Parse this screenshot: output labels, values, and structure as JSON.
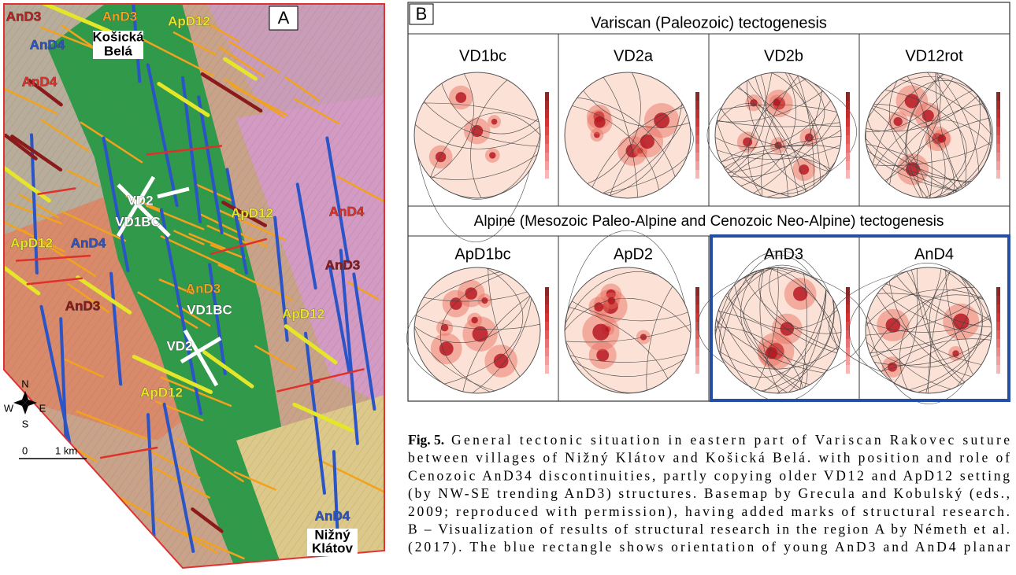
{
  "map": {
    "panel_label": "A",
    "labels": [
      "AnD3",
      "AnD3",
      "ApD12",
      "AnD4",
      "Košická",
      "Belá",
      "AnD4",
      "ApD12",
      "VD2",
      "VD1BC",
      "AnD4",
      "ApD12",
      "AnD4",
      "AnD3",
      "AnD3",
      "AnD3",
      "VD1BC",
      "VD2",
      "ApD12",
      "ApD12",
      "AnD4",
      "Nižný",
      "Klátov"
    ],
    "compass": {
      "n": "N",
      "w": "W",
      "e": "E",
      "s": "S"
    },
    "scale": {
      "start": "0",
      "end": "1 km"
    }
  },
  "stereonets": {
    "panel_label": "B",
    "sections": [
      {
        "title": "Variscan (Paleozoic) tectogenesis",
        "plots": [
          "VD1bc",
          "VD2a",
          "VD2b",
          "VD12rot"
        ]
      },
      {
        "title": "Alpine (Mesozoic Paleo-Alpine and Cenozoic Neo-Alpine) tectogenesis",
        "plots": [
          "ApD1bc",
          "ApD2",
          "AnD3",
          "AnD4"
        ]
      }
    ]
  },
  "caption": {
    "label": "Fig. 5.",
    "lines": [
      "General tectonic situation in eastern part of Variscan Rakovec suture",
      "between villages of Nižný Klátov and Košická Belá. with position and role of",
      "Cenozoic AnD34 discontinuities, partly copying older VD12 and ApD12 setting",
      "(by NW-SE trending AnD3) structures. Basemap by Grecula and Kobulský (eds.,",
      "2009; reproduced with permission), having added marks of structural research.",
      "B – Visualization of results of structural research in the region A by Németh et al.",
      "(2017). The blue rectangle shows orientation of young AnD3 and AnD4 planar"
    ]
  }
}
